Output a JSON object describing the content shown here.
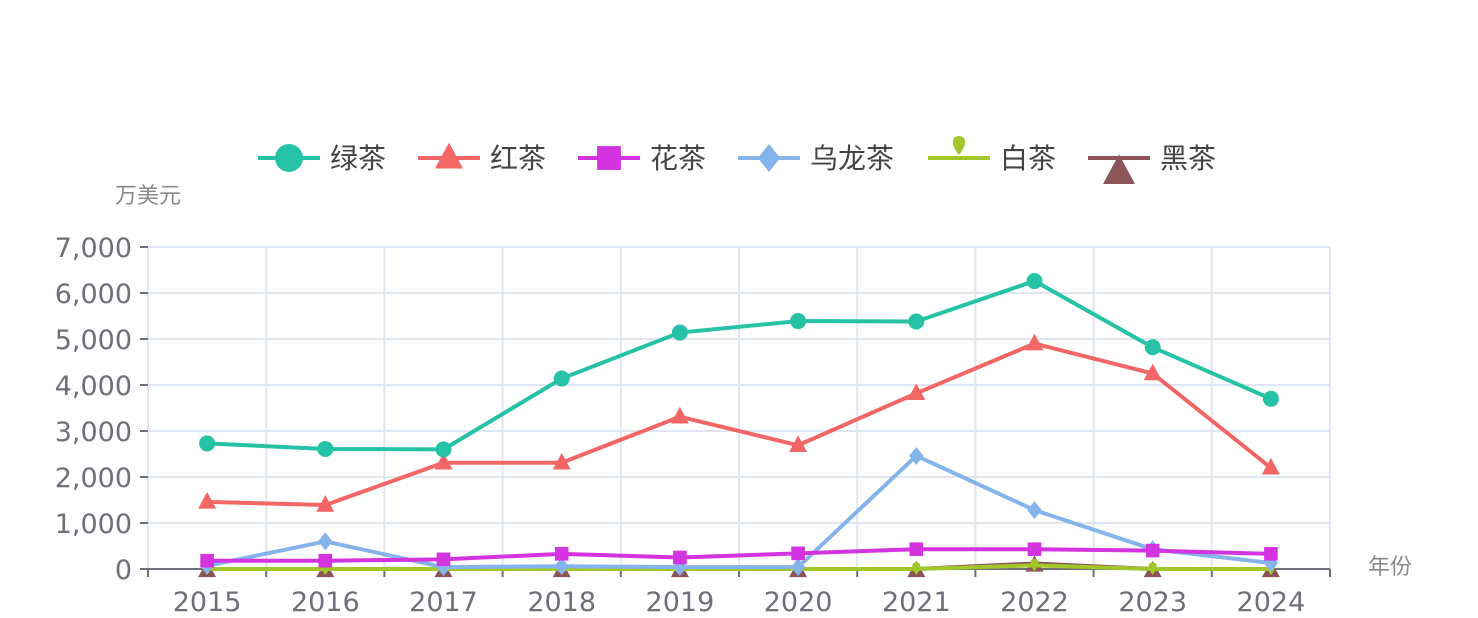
{
  "chart_data": {
    "type": "line",
    "title": "",
    "ylabel": "万美元",
    "xlabel": "年份",
    "categories": [
      "2015",
      "2016",
      "2017",
      "2018",
      "2019",
      "2020",
      "2021",
      "2022",
      "2023",
      "2024"
    ],
    "ylim": [
      0,
      7000
    ],
    "yticks": [
      0,
      1000,
      2000,
      3000,
      4000,
      5000,
      6000,
      7000
    ],
    "ytick_labels": [
      "0",
      "1,000",
      "2,000",
      "3,000",
      "4,000",
      "5,000",
      "6,000",
      "7,000"
    ],
    "grid": true,
    "legend_position": "top-center",
    "series": [
      {
        "name": "绿茶",
        "color": "#26c2a6",
        "marker": "circle",
        "values": [
          2730,
          2610,
          2600,
          4140,
          5140,
          5390,
          5380,
          6260,
          4820,
          3700
        ]
      },
      {
        "name": "红茶",
        "color": "#f26666",
        "marker": "triangle",
        "values": [
          1460,
          1390,
          2310,
          2310,
          3310,
          2690,
          3820,
          4900,
          4250,
          2200
        ]
      },
      {
        "name": "花茶",
        "color": "#d433e0",
        "marker": "square",
        "values": [
          180,
          180,
          210,
          330,
          250,
          340,
          430,
          430,
          400,
          330
        ]
      },
      {
        "name": "乌龙茶",
        "color": "#85b4ea",
        "marker": "diamond",
        "values": [
          70,
          600,
          40,
          60,
          40,
          40,
          2460,
          1280,
          430,
          130
        ]
      },
      {
        "name": "白茶",
        "color": "#a3c62b",
        "marker": "pin",
        "values": [
          0,
          0,
          0,
          0,
          0,
          0,
          0,
          80,
          0,
          0
        ]
      },
      {
        "name": "黑茶",
        "color": "#8b5456",
        "marker": "down-triangle",
        "values": [
          0,
          0,
          0,
          0,
          0,
          0,
          0,
          120,
          0,
          0
        ]
      }
    ]
  }
}
